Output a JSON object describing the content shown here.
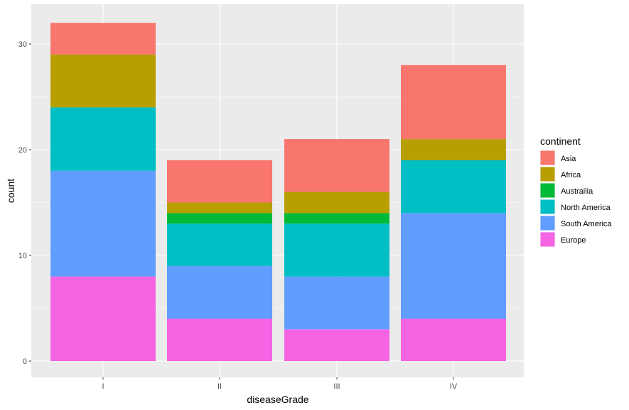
{
  "chart_data": {
    "type": "bar",
    "stacked": true,
    "xlabel": "diseaseGrade",
    "ylabel": "count",
    "categories": [
      "I",
      "II",
      "III",
      "IV"
    ],
    "ylim": [
      0,
      32
    ],
    "yticks": [
      0,
      10,
      20,
      30
    ],
    "grid": true,
    "legend_title": "continent",
    "legend_position": "right",
    "series": [
      {
        "name": "Asia",
        "color": "#F8766D",
        "values": [
          3,
          4,
          5,
          7
        ]
      },
      {
        "name": "Africa",
        "color": "#B79F00",
        "values": [
          5,
          1,
          2,
          2
        ]
      },
      {
        "name": "Australia",
        "color": "#00BA38",
        "values": [
          0,
          1,
          1,
          0
        ]
      },
      {
        "name": "North America",
        "color": "#00BFC4",
        "values": [
          6,
          4,
          5,
          5
        ]
      },
      {
        "name": "South America",
        "color": "#619CFF",
        "values": [
          10,
          5,
          5,
          10
        ]
      },
      {
        "name": "Europe",
        "color": "#F564E3",
        "values": [
          8,
          4,
          3,
          4
        ]
      }
    ],
    "legend_labels": [
      "Asia",
      "Africa",
      "Austrailia",
      "North America",
      "South America",
      "Europe"
    ]
  }
}
